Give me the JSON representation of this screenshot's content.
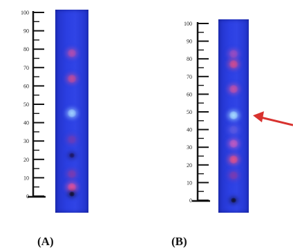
{
  "panels": [
    {
      "id": "A",
      "caption": "(A)",
      "ruler_labels": [
        "100",
        "90",
        "80",
        "70",
        "60",
        "50",
        "40",
        "30",
        "20",
        "10",
        "0"
      ],
      "spots": [
        {
          "position": 78,
          "color": "#b04db0"
        },
        {
          "position": 64,
          "color": "#c04a9a"
        },
        {
          "position": 45,
          "color": "#9fd0ff"
        },
        {
          "position": 31,
          "color": "#6a3ab8"
        },
        {
          "position": 22,
          "color": "#1b1560"
        },
        {
          "position": 12,
          "color": "#7a3ab0"
        },
        {
          "position": 5,
          "color": "#e0509a"
        },
        {
          "position": 1,
          "color": "#101030"
        }
      ]
    },
    {
      "id": "B",
      "caption": "(B)",
      "ruler_labels": [
        "100",
        "90",
        "80",
        "70",
        "60",
        "50",
        "40",
        "30",
        "20",
        "10",
        "0"
      ],
      "spots": [
        {
          "position": 83,
          "color": "#9a4cc0"
        },
        {
          "position": 77,
          "color": "#d14b8f"
        },
        {
          "position": 63,
          "color": "#c050a8"
        },
        {
          "position": 48,
          "color": "#a8dcff"
        },
        {
          "position": 40,
          "color": "#5b58e0"
        },
        {
          "position": 32,
          "color": "#c05ac0"
        },
        {
          "position": 23,
          "color": "#e0508a"
        },
        {
          "position": 14,
          "color": "#7a3ab0"
        },
        {
          "position": 0,
          "color": "#101030"
        }
      ],
      "arrow_target": 48,
      "arrow_color": "#d8322f"
    }
  ]
}
